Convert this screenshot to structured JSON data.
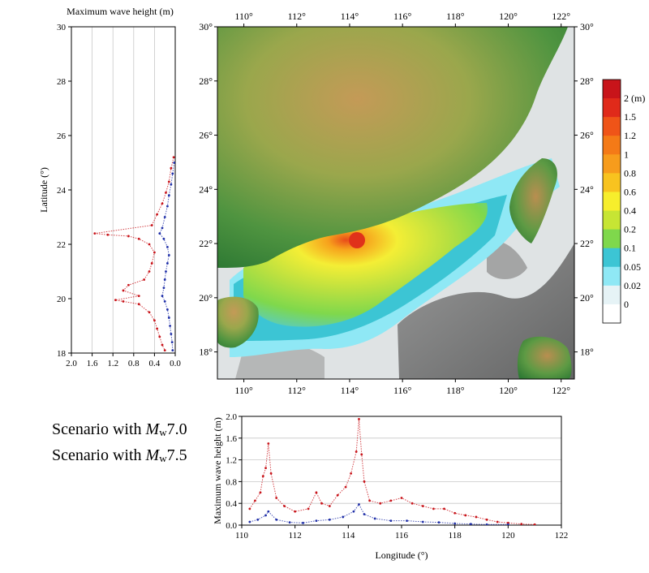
{
  "left_panel": {
    "title": "Maximum wave height (m)",
    "ylabel": "Latitude (°)",
    "lat_ticks": [
      "30",
      "28",
      "26",
      "24",
      "22",
      "20",
      "18"
    ],
    "wave_ticks": [
      "2.0",
      "1.6",
      "1.2",
      "0.8",
      "0.4",
      "0.0"
    ]
  },
  "map": {
    "top_ticks": [
      "110°",
      "112°",
      "114°",
      "116°",
      "118°",
      "120°",
      "122°"
    ],
    "bottom_ticks": [
      "110°",
      "112°",
      "114°",
      "116°",
      "118°",
      "120°",
      "122°"
    ],
    "left_ticks": [
      "30°",
      "28°",
      "26°",
      "24°",
      "22°",
      "20°",
      "18°"
    ],
    "right_ticks": [
      "30°",
      "28°",
      "26°",
      "24°",
      "22°",
      "20°",
      "18°"
    ],
    "colors": {
      "sea": "#dfe3e4",
      "land_low": "#3e8a3a",
      "land_high": "#caa25a"
    }
  },
  "colorbar": {
    "labels": [
      "2 (m)",
      "1.5",
      "1.2",
      "1",
      "0.8",
      "0.6",
      "0.4",
      "0.2",
      "0.1",
      "0.05",
      "0.02",
      "0"
    ],
    "colors": [
      "#c8141a",
      "#e02a1a",
      "#ef5418",
      "#f47a17",
      "#f79c1c",
      "#f8c31f",
      "#f7ee2c",
      "#c7e534",
      "#7fd84c",
      "#3cc5d4",
      "#8fe8f5",
      "#e6f3f6",
      "#ffffff"
    ]
  },
  "legend": {
    "line1_prefix": "Scenario with ",
    "line1_var": "M",
    "line1_sub": "w",
    "line1_val": "7.0",
    "line2_prefix": "Scenario with ",
    "line2_var": "M",
    "line2_sub": "w",
    "line2_val": "7.5"
  },
  "bottom_panel": {
    "ylabel": "Maximum wave height (m)",
    "xlabel": "Longitude (°)",
    "y_ticks": [
      "2.0",
      "1.6",
      "1.2",
      "0.8",
      "0.4",
      "0.0"
    ],
    "x_ticks": [
      "110",
      "112",
      "114",
      "116",
      "118",
      "120",
      "122"
    ]
  },
  "chart_data": [
    {
      "type": "scatter",
      "title": "Maximum wave height (m)",
      "xlabel": "Maximum wave height (m)",
      "ylabel": "Latitude (°)",
      "xlim": [
        2.0,
        0.0
      ],
      "ylim": [
        18,
        30
      ],
      "grid": true,
      "series": [
        {
          "color": "#c8141a",
          "points": [
            [
              0.03,
              25.2
            ],
            [
              0.08,
              24.8
            ],
            [
              0.12,
              24.3
            ],
            [
              0.18,
              23.9
            ],
            [
              0.25,
              23.5
            ],
            [
              0.35,
              23.1
            ],
            [
              0.45,
              22.7
            ],
            [
              1.55,
              22.4
            ],
            [
              1.3,
              22.35
            ],
            [
              0.9,
              22.3
            ],
            [
              0.7,
              22.2
            ],
            [
              0.5,
              22.0
            ],
            [
              0.4,
              21.7
            ],
            [
              0.45,
              21.3
            ],
            [
              0.5,
              21.0
            ],
            [
              0.6,
              20.7
            ],
            [
              0.9,
              20.5
            ],
            [
              1.0,
              20.3
            ],
            [
              0.7,
              20.1
            ],
            [
              1.15,
              19.95
            ],
            [
              1.0,
              19.9
            ],
            [
              0.7,
              19.8
            ],
            [
              0.5,
              19.5
            ],
            [
              0.4,
              19.2
            ],
            [
              0.35,
              18.9
            ],
            [
              0.3,
              18.6
            ],
            [
              0.25,
              18.3
            ],
            [
              0.2,
              18.1
            ]
          ]
        },
        {
          "color": "#1f2fa8",
          "points": [
            [
              0.02,
              25.0
            ],
            [
              0.05,
              24.6
            ],
            [
              0.08,
              24.2
            ],
            [
              0.12,
              23.8
            ],
            [
              0.15,
              23.4
            ],
            [
              0.2,
              23.0
            ],
            [
              0.25,
              22.6
            ],
            [
              0.3,
              22.4
            ],
            [
              0.22,
              22.2
            ],
            [
              0.15,
              21.9
            ],
            [
              0.12,
              21.6
            ],
            [
              0.15,
              21.3
            ],
            [
              0.18,
              21.0
            ],
            [
              0.2,
              20.7
            ],
            [
              0.22,
              20.4
            ],
            [
              0.25,
              20.1
            ],
            [
              0.2,
              19.9
            ],
            [
              0.15,
              19.6
            ],
            [
              0.12,
              19.3
            ],
            [
              0.1,
              19.0
            ],
            [
              0.08,
              18.7
            ],
            [
              0.06,
              18.4
            ],
            [
              0.05,
              18.1
            ]
          ]
        }
      ]
    },
    {
      "type": "scatter",
      "xlabel": "Longitude (°)",
      "ylabel": "Maximum wave height (m)",
      "xlim": [
        110,
        122
      ],
      "ylim": [
        0,
        2.0
      ],
      "grid": true,
      "series": [
        {
          "color": "#c8141a",
          "points": [
            [
              110.3,
              0.3
            ],
            [
              110.5,
              0.45
            ],
            [
              110.7,
              0.6
            ],
            [
              110.8,
              0.9
            ],
            [
              110.9,
              1.05
            ],
            [
              111.0,
              1.5
            ],
            [
              111.1,
              0.95
            ],
            [
              111.3,
              0.5
            ],
            [
              111.6,
              0.35
            ],
            [
              112.0,
              0.25
            ],
            [
              112.5,
              0.3
            ],
            [
              112.8,
              0.6
            ],
            [
              113.0,
              0.4
            ],
            [
              113.3,
              0.35
            ],
            [
              113.6,
              0.55
            ],
            [
              113.9,
              0.7
            ],
            [
              114.1,
              0.95
            ],
            [
              114.3,
              1.35
            ],
            [
              114.4,
              1.95
            ],
            [
              114.5,
              1.3
            ],
            [
              114.6,
              0.8
            ],
            [
              114.8,
              0.45
            ],
            [
              115.2,
              0.4
            ],
            [
              115.6,
              0.45
            ],
            [
              116.0,
              0.5
            ],
            [
              116.4,
              0.4
            ],
            [
              116.8,
              0.35
            ],
            [
              117.2,
              0.3
            ],
            [
              117.6,
              0.3
            ],
            [
              118.0,
              0.22
            ],
            [
              118.4,
              0.18
            ],
            [
              118.8,
              0.15
            ],
            [
              119.2,
              0.1
            ],
            [
              119.6,
              0.06
            ],
            [
              120.0,
              0.04
            ],
            [
              120.5,
              0.02
            ],
            [
              121.0,
              0.01
            ]
          ]
        },
        {
          "color": "#1f2fa8",
          "points": [
            [
              110.3,
              0.06
            ],
            [
              110.6,
              0.1
            ],
            [
              110.9,
              0.18
            ],
            [
              111.0,
              0.25
            ],
            [
              111.3,
              0.1
            ],
            [
              111.8,
              0.05
            ],
            [
              112.3,
              0.04
            ],
            [
              112.8,
              0.08
            ],
            [
              113.3,
              0.1
            ],
            [
              113.8,
              0.15
            ],
            [
              114.2,
              0.25
            ],
            [
              114.4,
              0.38
            ],
            [
              114.6,
              0.2
            ],
            [
              115.0,
              0.12
            ],
            [
              115.6,
              0.08
            ],
            [
              116.2,
              0.08
            ],
            [
              116.8,
              0.06
            ],
            [
              117.4,
              0.05
            ],
            [
              118.0,
              0.03
            ],
            [
              118.6,
              0.02
            ],
            [
              119.2,
              0.01
            ],
            [
              120.0,
              0.01
            ]
          ]
        }
      ]
    }
  ]
}
